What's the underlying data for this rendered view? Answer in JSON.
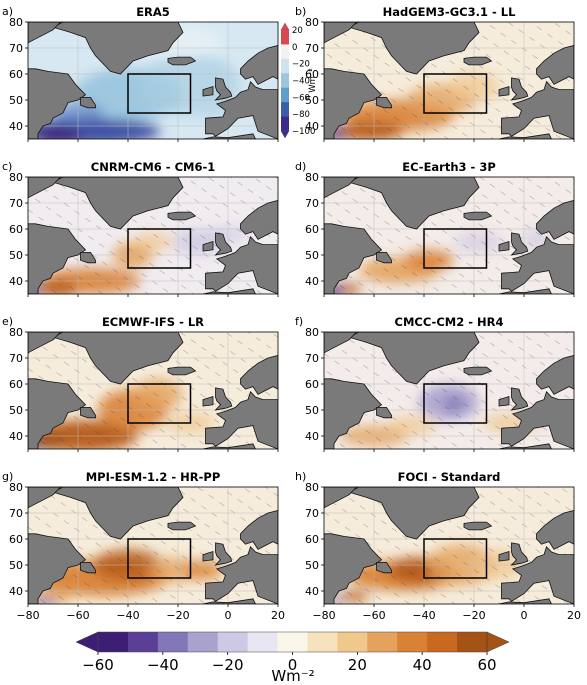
{
  "chart_data": [
    {
      "type": "heatmap",
      "panel_label": "a)",
      "title": "ERA5",
      "xlim": [
        -80,
        20
      ],
      "ylim": [
        35,
        80
      ],
      "box": {
        "lon": [
          -40,
          -15
        ],
        "lat": [
          45,
          60
        ]
      },
      "inset_colorbar": {
        "ticks": [
          "20",
          "0",
          "−20",
          "−40",
          "−60",
          "−80",
          "−100"
        ],
        "unit": "Wm⁻²",
        "colors": [
          "#d6494c",
          "#f2f2f2",
          "#cfe3ee",
          "#9dc6dd",
          "#5d9fc8",
          "#3a5fa8",
          "#3b2b8f"
        ]
      }
    },
    {
      "type": "heatmap",
      "panel_label": "b)",
      "title": "HadGEM3-GC3.1 - LL",
      "xlim": [
        -80,
        20
      ],
      "ylim": [
        35,
        80
      ],
      "box": {
        "lon": [
          -40,
          -15
        ],
        "lat": [
          45,
          60
        ]
      }
    },
    {
      "type": "heatmap",
      "panel_label": "c)",
      "title": "CNRM-CM6 - CM6-1",
      "xlim": [
        -80,
        20
      ],
      "ylim": [
        35,
        80
      ],
      "box": {
        "lon": [
          -40,
          -15
        ],
        "lat": [
          45,
          60
        ]
      }
    },
    {
      "type": "heatmap",
      "panel_label": "d)",
      "title": "EC-Earth3 - 3P",
      "xlim": [
        -80,
        20
      ],
      "ylim": [
        35,
        80
      ],
      "box": {
        "lon": [
          -40,
          -15
        ],
        "lat": [
          45,
          60
        ]
      }
    },
    {
      "type": "heatmap",
      "panel_label": "e)",
      "title": "ECMWF-IFS - LR",
      "xlim": [
        -80,
        20
      ],
      "ylim": [
        35,
        80
      ],
      "box": {
        "lon": [
          -40,
          -15
        ],
        "lat": [
          45,
          60
        ]
      }
    },
    {
      "type": "heatmap",
      "panel_label": "f)",
      "title": "CMCC-CM2 - HR4",
      "xlim": [
        -80,
        20
      ],
      "ylim": [
        35,
        80
      ],
      "box": {
        "lon": [
          -40,
          -15
        ],
        "lat": [
          45,
          60
        ]
      }
    },
    {
      "type": "heatmap",
      "panel_label": "g)",
      "title": "MPI-ESM-1.2 - HR-PP",
      "xlim": [
        -80,
        20
      ],
      "ylim": [
        35,
        80
      ],
      "box": {
        "lon": [
          -40,
          -15
        ],
        "lat": [
          45,
          60
        ]
      }
    },
    {
      "type": "heatmap",
      "panel_label": "h)",
      "title": "FOCI - Standard",
      "xlim": [
        -80,
        20
      ],
      "ylim": [
        35,
        80
      ],
      "box": {
        "lon": [
          -40,
          -15
        ],
        "lat": [
          45,
          60
        ]
      }
    }
  ],
  "axes": {
    "yticks": [
      "80",
      "70",
      "60",
      "50",
      "40"
    ],
    "xticks": [
      "−80",
      "−60",
      "−40",
      "−20",
      "0",
      "20"
    ]
  },
  "colorbar": {
    "unit": "Wm⁻²",
    "tick_labels": [
      "−60",
      "−40",
      "−20",
      "0",
      "20",
      "40",
      "60"
    ],
    "colors": [
      "#3e1d74",
      "#5b3f96",
      "#8377b7",
      "#a9a2cf",
      "#cdc9e4",
      "#e8e6f2",
      "#fbf6ea",
      "#f6e2bd",
      "#efc88c",
      "#e5a25c",
      "#d98236",
      "#c8691f",
      "#a45216"
    ],
    "extend": "both"
  },
  "colors": {
    "land": "#7a7a7a",
    "ocean_era5": "#cfe3ee",
    "ocean_model": "#f6ecdb",
    "warm": "#d98236",
    "cool": "#8377b7"
  }
}
